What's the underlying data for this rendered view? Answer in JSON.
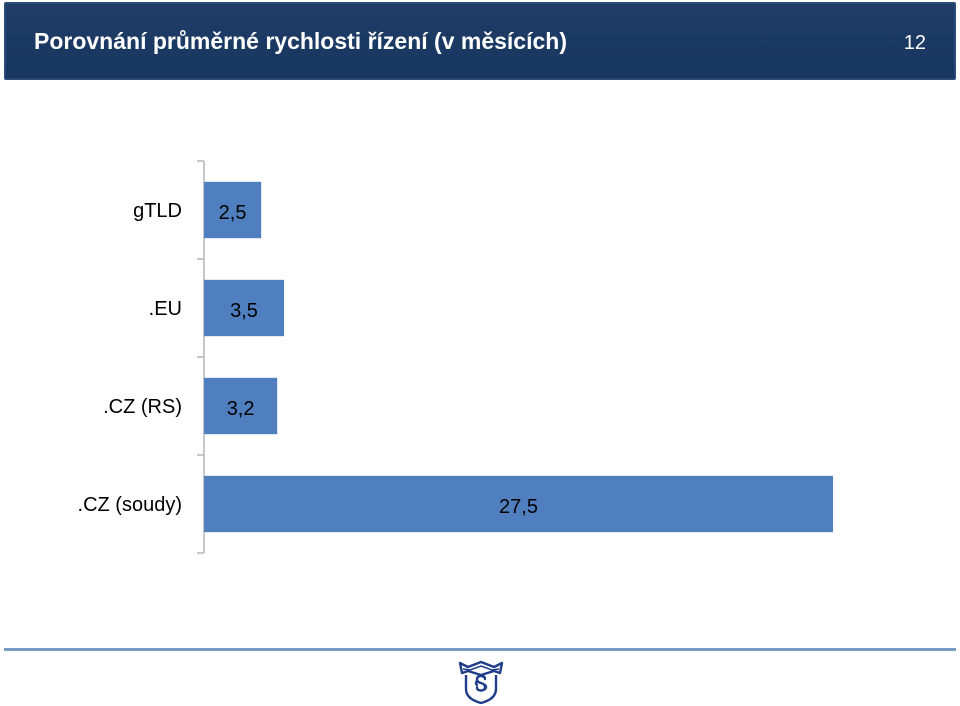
{
  "header": {
    "title": "Porovnání průměrné rychlosti řízení (v měsících)",
    "slide_number": "12"
  },
  "colors": {
    "header_bg": "#1a3a63",
    "bar": "#4f7fbe",
    "axis": "#b5b5b5",
    "footer_line": "#7a9cc2",
    "logo": "#1f3d8a"
  },
  "logo": {
    "icon": "court-shield-paragraph-logo"
  },
  "chart_data": {
    "type": "bar",
    "orientation": "horizontal",
    "categories": [
      "gTLD",
      ".EU",
      ".CZ (RS)",
      ".CZ (soudy)"
    ],
    "values": [
      2.5,
      3.5,
      3.2,
      27.5
    ],
    "value_labels": [
      "2,5",
      "3,5",
      "3,2",
      "27,5"
    ],
    "xlim": [
      0,
      27.5
    ],
    "grid": false,
    "legend": "none"
  }
}
